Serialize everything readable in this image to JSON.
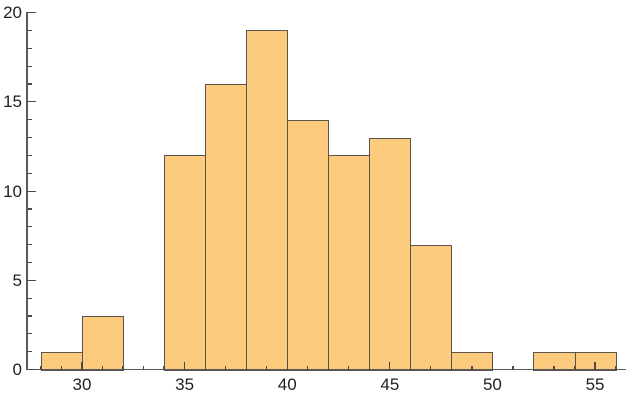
{
  "chart": {
    "title": "",
    "background": "#ffffff",
    "axis_color": "#5a5a5a",
    "tick_color": "#4a4a4a",
    "label_color": "#1f1f1f",
    "bar_fill": "#fdcb7d",
    "bar_edge": "#5c544a"
  },
  "chart_data": {
    "type": "bar",
    "subtype": "histogram",
    "title": "",
    "xlabel": "",
    "ylabel": "",
    "bin_edges": [
      28,
      30,
      32,
      34,
      36,
      38,
      40,
      42,
      44,
      46,
      48,
      50,
      52,
      54,
      56
    ],
    "counts": [
      1,
      3,
      0,
      12,
      16,
      19,
      14,
      12,
      13,
      7,
      1,
      0,
      1,
      1
    ],
    "total_count": 100,
    "xlim": [
      27.3,
      56.5
    ],
    "ylim": [
      0,
      20
    ],
    "x_major_ticks": [
      30,
      35,
      40,
      45,
      50,
      55
    ],
    "x_tick_labels": [
      "30",
      "35",
      "40",
      "45",
      "50",
      "55"
    ],
    "x_minor_tick_step": 1,
    "x_minor_tick_range": [
      28,
      56
    ],
    "y_major_ticks": [
      0,
      5,
      10,
      15,
      20
    ],
    "y_tick_labels": [
      "0",
      "5",
      "10",
      "15",
      "20"
    ],
    "y_minor_tick_step": 1,
    "grid": false,
    "legend": false,
    "ticks_direction": "inward"
  }
}
